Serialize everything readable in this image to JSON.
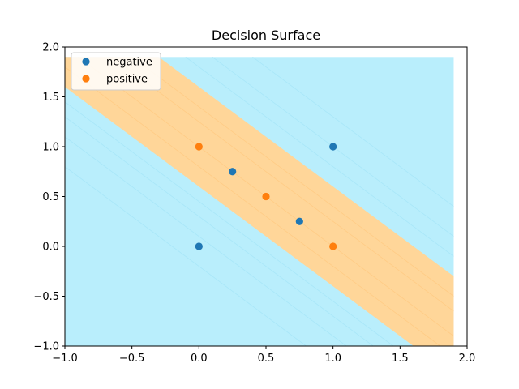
{
  "chart_data": {
    "type": "scatter",
    "title": "Decision Surface",
    "xlabel": "",
    "ylabel": "",
    "xlim": [
      -1.0,
      2.0
    ],
    "ylim": [
      -1.0,
      2.0
    ],
    "x_ticks": [
      -1.0,
      -0.5,
      0.0,
      0.5,
      1.0,
      1.5,
      2.0
    ],
    "y_ticks": [
      -1.0,
      -0.5,
      0.0,
      0.5,
      1.0,
      1.5,
      2.0
    ],
    "x_tick_labels": [
      "−1.0",
      "−0.5",
      "0.0",
      "0.5",
      "1.0",
      "1.5",
      "2.0"
    ],
    "y_tick_labels": [
      "−1.0",
      "−0.5",
      "0.0",
      "0.5",
      "1.0",
      "1.5",
      "2.0"
    ],
    "grid": false,
    "legend_position": "top-left",
    "surface": {
      "x_range": [
        -1.0,
        1.9
      ],
      "y_range": [
        -1.0,
        1.9
      ],
      "background_color": "#b9eefc",
      "band_color": "#ffd699",
      "band_bounds_x_plus_y": [
        0.6,
        1.6
      ]
    },
    "series": [
      {
        "name": "negative",
        "color": "#1f77b4",
        "points": [
          [
            0.0,
            0.0
          ],
          [
            0.25,
            0.75
          ],
          [
            0.75,
            0.25
          ],
          [
            1.0,
            1.0
          ]
        ]
      },
      {
        "name": "positive",
        "color": "#ff7f0e",
        "points": [
          [
            0.0,
            1.0
          ],
          [
            0.5,
            0.5
          ],
          [
            1.0,
            0.0
          ]
        ]
      }
    ]
  }
}
